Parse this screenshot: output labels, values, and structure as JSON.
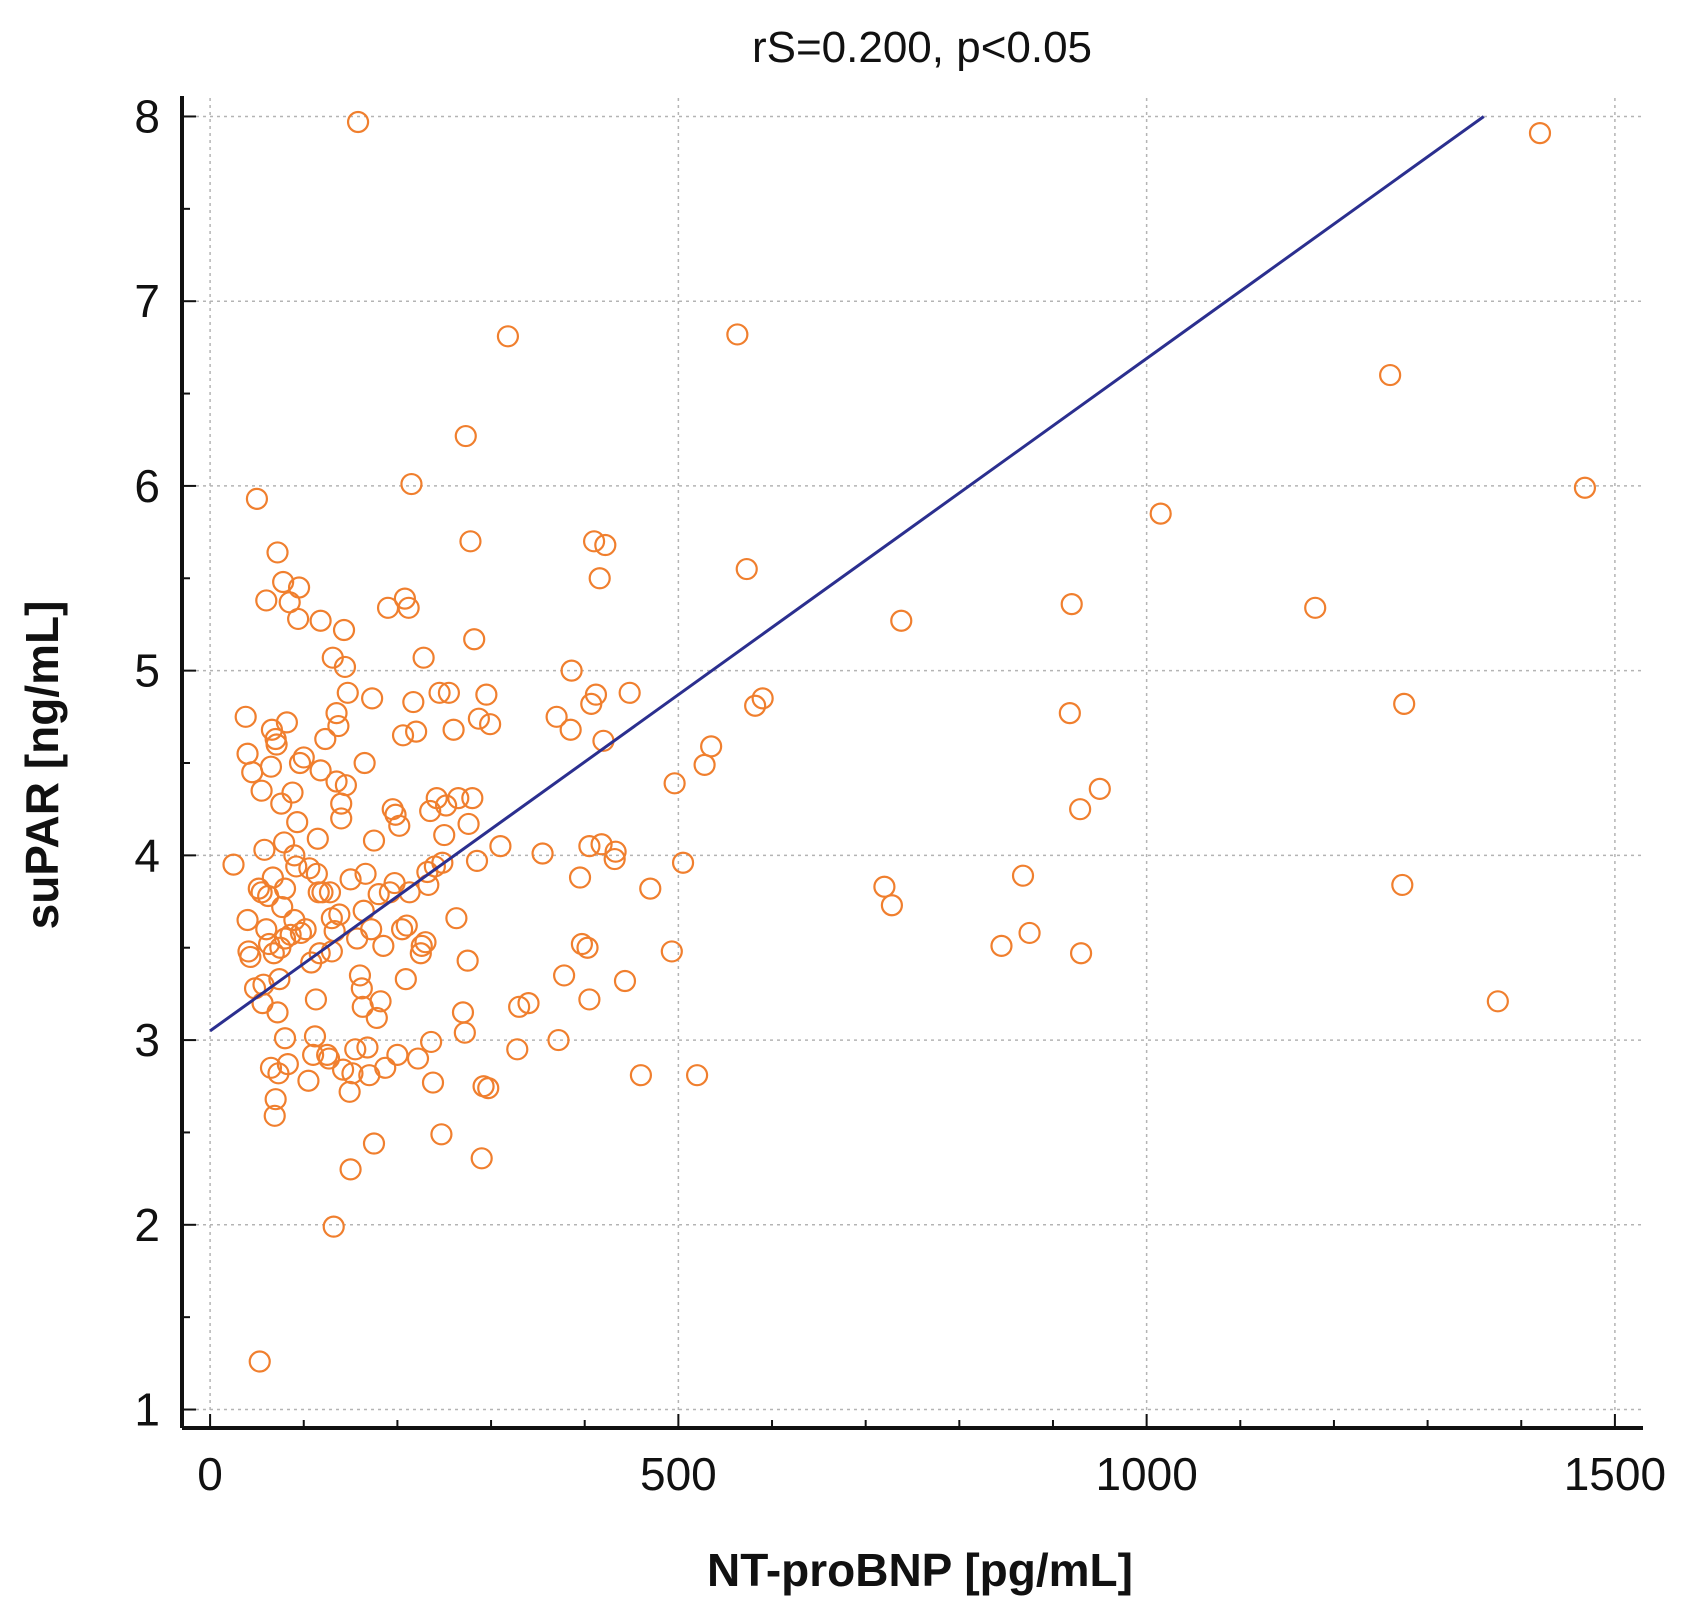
{
  "chart_data": {
    "type": "scatter",
    "title": "rS=0.200, p<0.05",
    "xlabel": "NT-proBNP [pg/mL]",
    "ylabel": "suPAR [ng/mL]",
    "xlim": [
      -30,
      1530
    ],
    "ylim": [
      0.9,
      8.1
    ],
    "xticks": [
      0,
      500,
      1000,
      1500
    ],
    "yticks": [
      1,
      2,
      3,
      4,
      5,
      6,
      7,
      8
    ],
    "grid": true,
    "colors": {
      "points": "#f07f2e",
      "line": "#2b2f8f",
      "axis": "#111111"
    },
    "regression_line": {
      "x": [
        0,
        1360
      ],
      "y": [
        3.05,
        8.0
      ]
    },
    "points": [
      [
        25,
        3.95
      ],
      [
        38,
        4.75
      ],
      [
        40,
        4.55
      ],
      [
        40,
        3.65
      ],
      [
        41,
        3.48
      ],
      [
        43,
        3.45
      ],
      [
        45,
        4.45
      ],
      [
        48,
        3.28
      ],
      [
        50,
        5.93
      ],
      [
        52,
        3.82
      ],
      [
        53,
        1.26
      ],
      [
        55,
        3.8
      ],
      [
        55,
        4.35
      ],
      [
        56,
        3.2
      ],
      [
        57,
        3.3
      ],
      [
        58,
        4.03
      ],
      [
        60,
        5.38
      ],
      [
        60,
        3.6
      ],
      [
        62,
        3.78
      ],
      [
        63,
        3.52
      ],
      [
        65,
        2.85
      ],
      [
        65,
        4.48
      ],
      [
        66,
        4.68
      ],
      [
        67,
        3.88
      ],
      [
        68,
        3.47
      ],
      [
        69,
        2.59
      ],
      [
        70,
        2.68
      ],
      [
        70,
        4.63
      ],
      [
        71,
        4.6
      ],
      [
        72,
        5.64
      ],
      [
        72,
        3.15
      ],
      [
        73,
        2.82
      ],
      [
        74,
        3.33
      ],
      [
        75,
        3.5
      ],
      [
        76,
        4.28
      ],
      [
        77,
        3.72
      ],
      [
        78,
        5.48
      ],
      [
        79,
        4.07
      ],
      [
        80,
        3.55
      ],
      [
        80,
        3.01
      ],
      [
        80,
        3.82
      ],
      [
        82,
        4.72
      ],
      [
        83,
        2.87
      ],
      [
        85,
        5.37
      ],
      [
        86,
        3.57
      ],
      [
        88,
        4.34
      ],
      [
        90,
        4.0
      ],
      [
        90,
        3.65
      ],
      [
        92,
        3.94
      ],
      [
        93,
        4.18
      ],
      [
        94,
        5.28
      ],
      [
        95,
        5.45
      ],
      [
        96,
        4.5
      ],
      [
        97,
        3.58
      ],
      [
        100,
        4.53
      ],
      [
        102,
        3.6
      ],
      [
        105,
        2.78
      ],
      [
        106,
        3.93
      ],
      [
        108,
        3.42
      ],
      [
        110,
        2.92
      ],
      [
        112,
        3.02
      ],
      [
        113,
        3.22
      ],
      [
        114,
        3.9
      ],
      [
        115,
        4.09
      ],
      [
        116,
        3.8
      ],
      [
        117,
        3.47
      ],
      [
        118,
        5.27
      ],
      [
        118,
        4.46
      ],
      [
        120,
        3.8
      ],
      [
        123,
        4.63
      ],
      [
        125,
        2.92
      ],
      [
        127,
        2.9
      ],
      [
        128,
        3.8
      ],
      [
        130,
        3.66
      ],
      [
        130,
        3.48
      ],
      [
        131,
        5.07
      ],
      [
        132,
        1.99
      ],
      [
        133,
        3.59
      ],
      [
        135,
        4.4
      ],
      [
        135,
        4.77
      ],
      [
        137,
        4.7
      ],
      [
        138,
        3.68
      ],
      [
        140,
        4.2
      ],
      [
        140,
        4.28
      ],
      [
        142,
        2.84
      ],
      [
        143,
        5.22
      ],
      [
        144,
        5.02
      ],
      [
        145,
        4.38
      ],
      [
        147,
        4.88
      ],
      [
        149,
        2.72
      ],
      [
        150,
        3.87
      ],
      [
        150,
        2.3
      ],
      [
        152,
        2.82
      ],
      [
        155,
        2.95
      ],
      [
        157,
        3.55
      ],
      [
        158,
        7.97
      ],
      [
        160,
        3.35
      ],
      [
        162,
        3.28
      ],
      [
        163,
        3.18
      ],
      [
        164,
        3.7
      ],
      [
        165,
        4.5
      ],
      [
        166,
        3.9
      ],
      [
        168,
        2.96
      ],
      [
        170,
        2.81
      ],
      [
        172,
        3.6
      ],
      [
        173,
        4.85
      ],
      [
        175,
        4.08
      ],
      [
        175,
        2.44
      ],
      [
        178,
        3.12
      ],
      [
        180,
        3.79
      ],
      [
        182,
        3.21
      ],
      [
        185,
        3.51
      ],
      [
        187,
        2.85
      ],
      [
        190,
        5.34
      ],
      [
        192,
        3.8
      ],
      [
        195,
        4.25
      ],
      [
        197,
        3.85
      ],
      [
        198,
        4.22
      ],
      [
        200,
        2.92
      ],
      [
        202,
        4.16
      ],
      [
        205,
        3.6
      ],
      [
        206,
        4.65
      ],
      [
        208,
        5.39
      ],
      [
        209,
        3.33
      ],
      [
        210,
        3.62
      ],
      [
        212,
        5.34
      ],
      [
        213,
        3.8
      ],
      [
        215,
        6.01
      ],
      [
        217,
        4.83
      ],
      [
        220,
        4.67
      ],
      [
        222,
        2.9
      ],
      [
        225,
        3.47
      ],
      [
        226,
        3.51
      ],
      [
        228,
        5.07
      ],
      [
        230,
        3.53
      ],
      [
        232,
        3.91
      ],
      [
        233,
        3.84
      ],
      [
        235,
        4.24
      ],
      [
        236,
        2.99
      ],
      [
        238,
        2.77
      ],
      [
        240,
        3.94
      ],
      [
        242,
        4.31
      ],
      [
        245,
        4.88
      ],
      [
        247,
        2.49
      ],
      [
        248,
        3.96
      ],
      [
        250,
        4.11
      ],
      [
        252,
        4.27
      ],
      [
        255,
        4.88
      ],
      [
        260,
        4.68
      ],
      [
        263,
        3.66
      ],
      [
        265,
        4.31
      ],
      [
        270,
        3.15
      ],
      [
        272,
        3.04
      ],
      [
        273,
        6.27
      ],
      [
        275,
        3.43
      ],
      [
        276,
        4.17
      ],
      [
        278,
        5.7
      ],
      [
        280,
        4.31
      ],
      [
        282,
        5.17
      ],
      [
        285,
        3.97
      ],
      [
        287,
        4.74
      ],
      [
        290,
        2.36
      ],
      [
        292,
        2.75
      ],
      [
        295,
        4.87
      ],
      [
        297,
        2.74
      ],
      [
        299,
        4.71
      ],
      [
        310,
        4.05
      ],
      [
        318,
        6.81
      ],
      [
        328,
        2.95
      ],
      [
        330,
        3.18
      ],
      [
        340,
        3.2
      ],
      [
        355,
        4.01
      ],
      [
        370,
        4.75
      ],
      [
        372,
        3.0
      ],
      [
        378,
        3.35
      ],
      [
        385,
        4.68
      ],
      [
        386,
        5.0
      ],
      [
        395,
        3.88
      ],
      [
        397,
        3.52
      ],
      [
        403,
        3.5
      ],
      [
        405,
        4.05
      ],
      [
        405,
        3.22
      ],
      [
        407,
        4.82
      ],
      [
        410,
        5.7
      ],
      [
        412,
        4.87
      ],
      [
        416,
        5.5
      ],
      [
        418,
        4.06
      ],
      [
        420,
        4.62
      ],
      [
        422,
        5.68
      ],
      [
        432,
        3.98
      ],
      [
        433,
        4.02
      ],
      [
        443,
        3.32
      ],
      [
        448,
        4.88
      ],
      [
        460,
        2.81
      ],
      [
        470,
        3.82
      ],
      [
        493,
        3.48
      ],
      [
        496,
        4.39
      ],
      [
        505,
        3.96
      ],
      [
        520,
        2.81
      ],
      [
        528,
        4.49
      ],
      [
        535,
        4.59
      ],
      [
        563,
        6.82
      ],
      [
        573,
        5.55
      ],
      [
        582,
        4.81
      ],
      [
        590,
        4.85
      ],
      [
        720,
        3.83
      ],
      [
        728,
        3.73
      ],
      [
        738,
        5.27
      ],
      [
        845,
        3.51
      ],
      [
        868,
        3.89
      ],
      [
        875,
        3.58
      ],
      [
        918,
        4.77
      ],
      [
        920,
        5.36
      ],
      [
        929,
        4.25
      ],
      [
        930,
        3.47
      ],
      [
        950,
        4.36
      ],
      [
        1015,
        5.85
      ],
      [
        1180,
        5.34
      ],
      [
        1260,
        6.6
      ],
      [
        1273,
        3.84
      ],
      [
        1275,
        4.82
      ],
      [
        1375,
        3.21
      ],
      [
        1420,
        7.91
      ],
      [
        1468,
        5.99
      ]
    ]
  }
}
